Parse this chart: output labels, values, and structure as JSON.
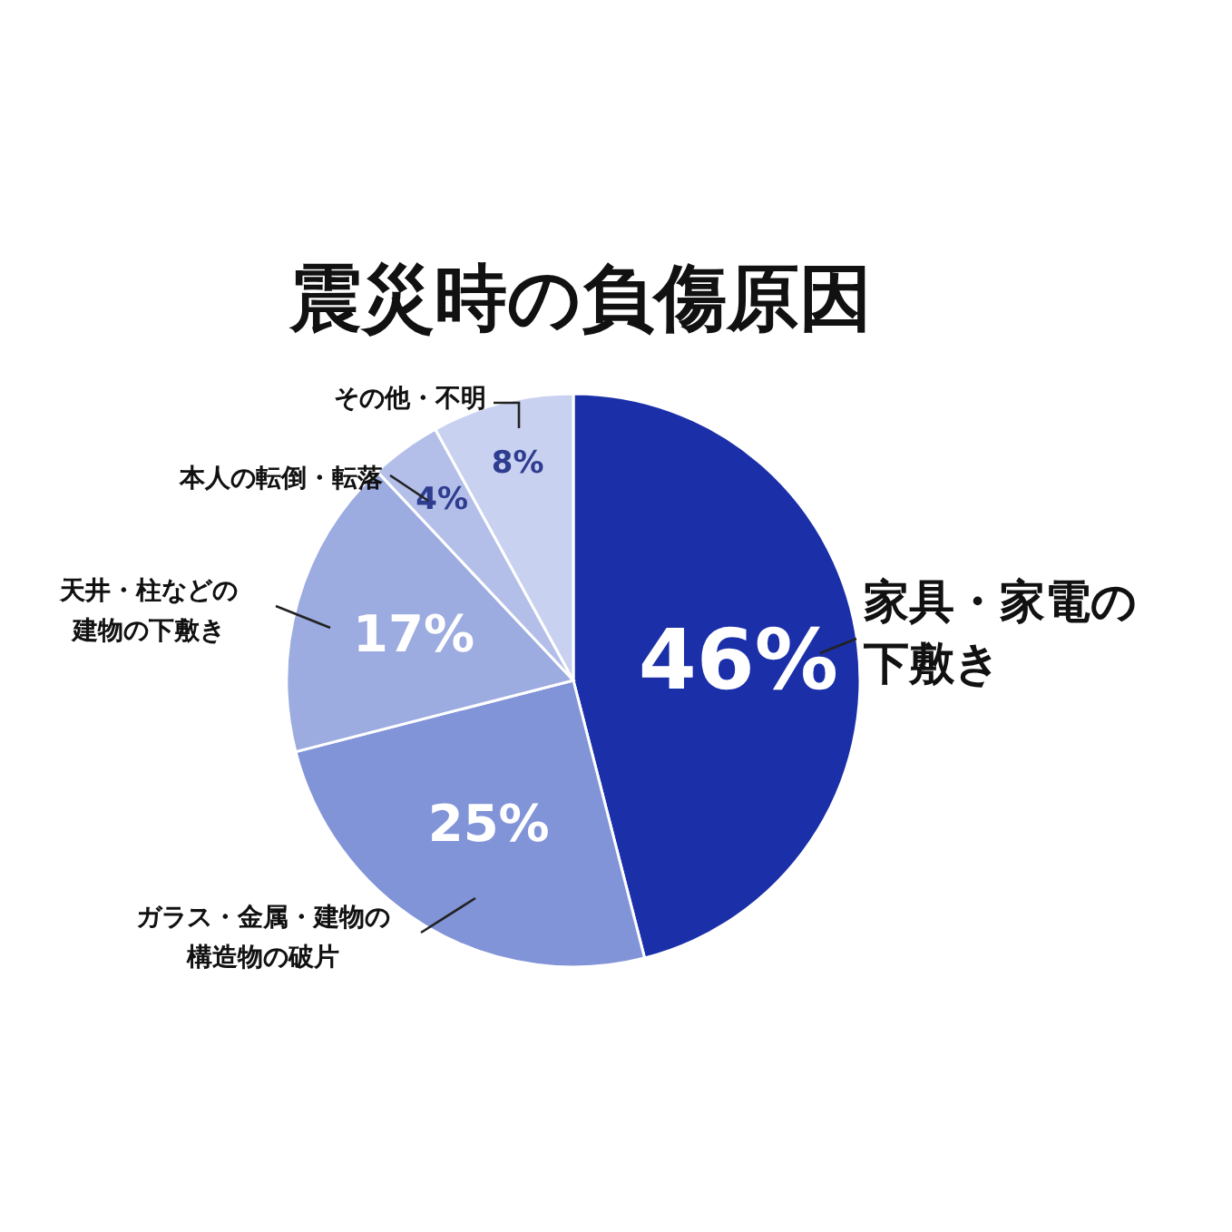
{
  "chart_data": {
    "type": "pie",
    "title": "震災時の負傷原因",
    "categories": [
      "家具・家電の下敷き",
      "ガラス・金属・建物の構造物の破片",
      "天井・柱などの建物の下敷き",
      "本人の転倒・転落",
      "その他・不明"
    ],
    "values": [
      46,
      25,
      17,
      4,
      8
    ],
    "value_labels": [
      "46%",
      "25%",
      "17%",
      "4%",
      "8%"
    ],
    "colors": [
      "#1a2fa8",
      "#8294d8",
      "#9cabe0",
      "#b4bfe9",
      "#c9d1f0"
    ]
  }
}
